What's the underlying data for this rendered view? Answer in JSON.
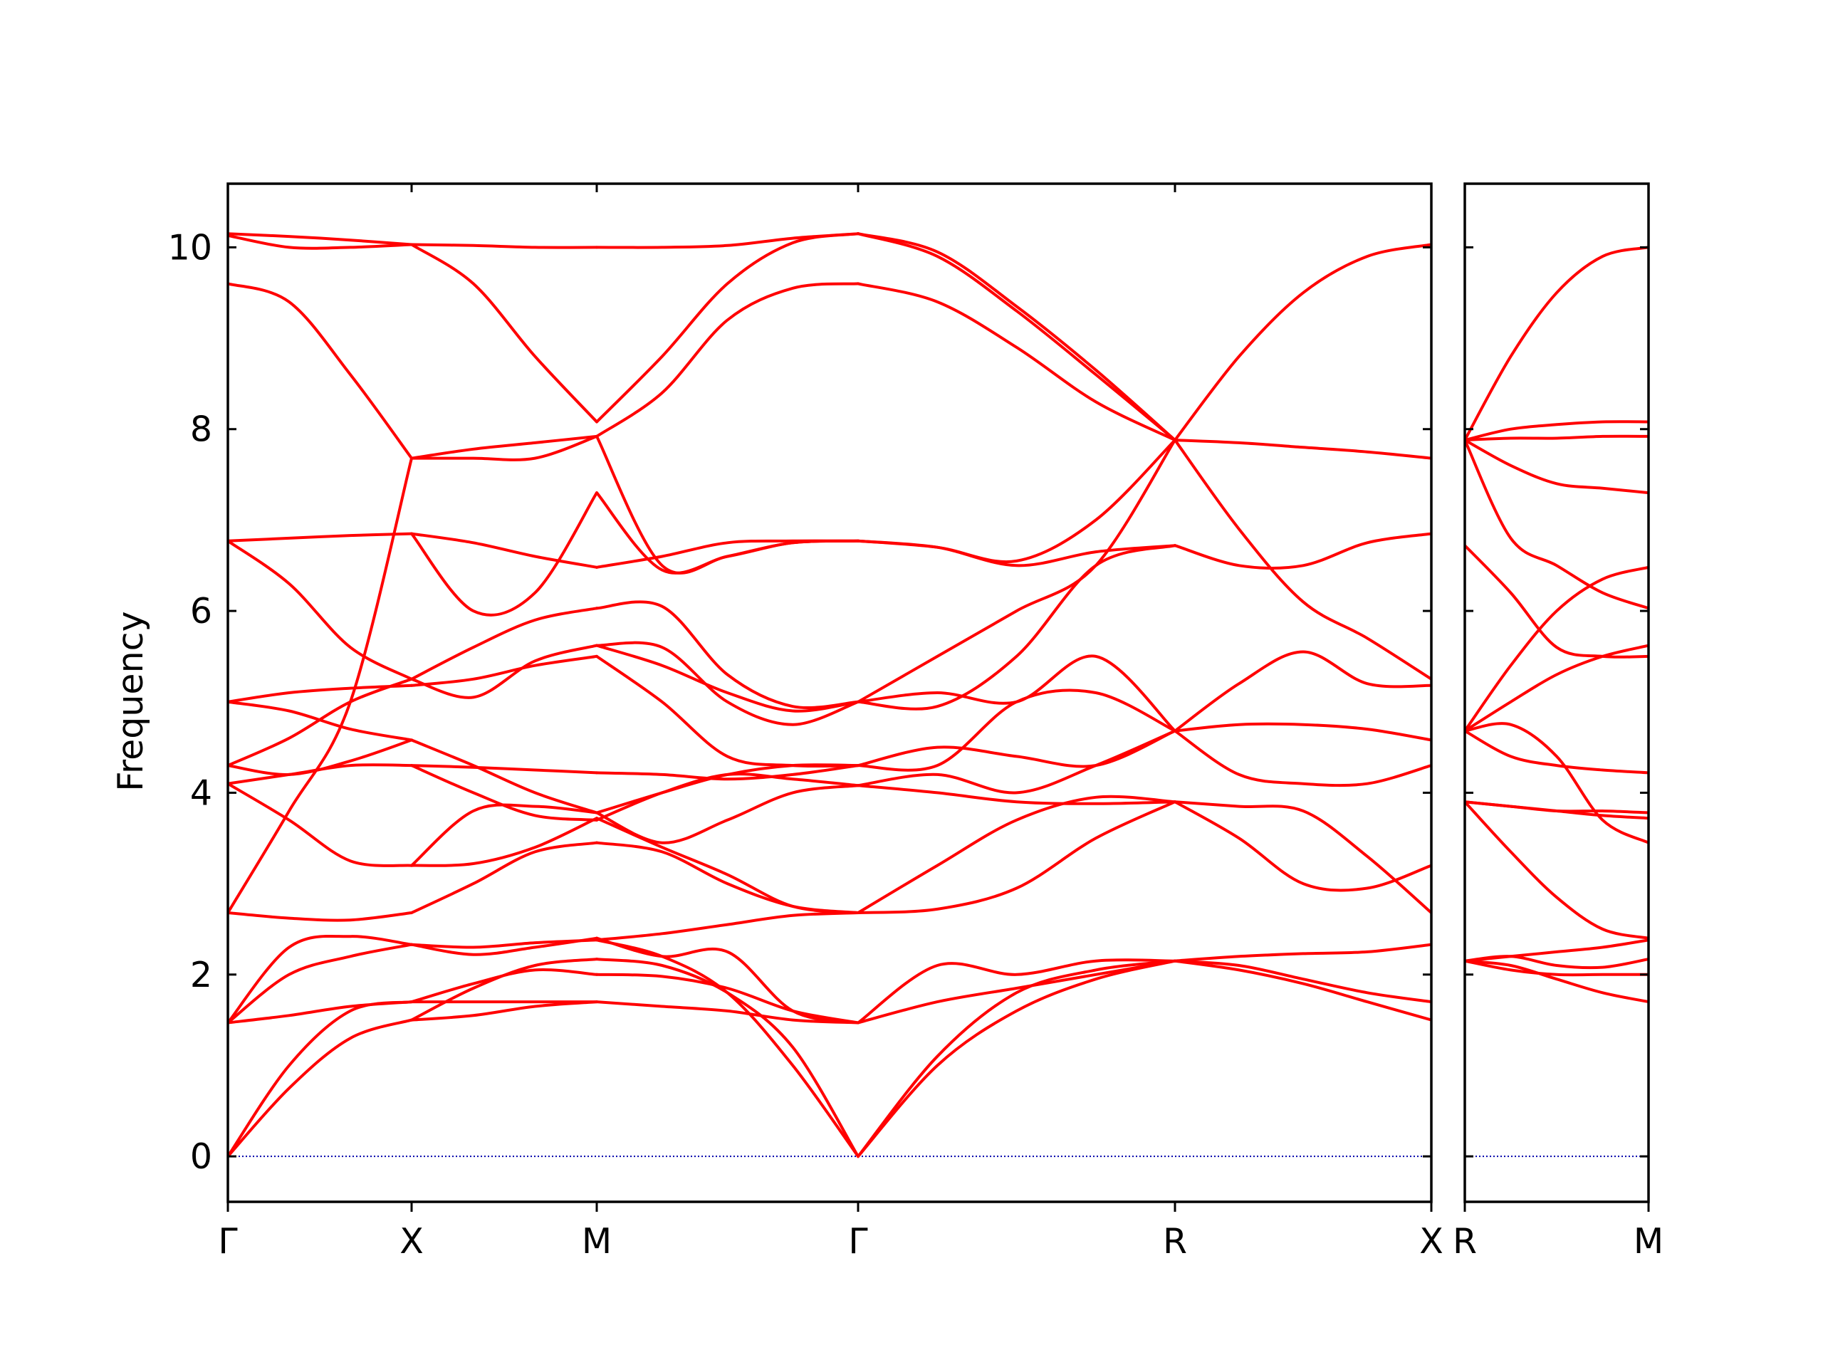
{
  "chart_data": {
    "type": "line",
    "ylabel": "Frequency",
    "ylim": [
      -0.5,
      10.7
    ],
    "yticks": [
      0,
      2,
      4,
      6,
      8,
      10
    ],
    "line_color": "#ff0000",
    "zero_line_color": "#0000aa",
    "panels": [
      {
        "xlabels": [
          "Γ",
          "X",
          "M",
          "Γ",
          "R",
          "X"
        ],
        "segments": [
          {
            "from": "Γ",
            "to": "X",
            "bands": [
              [
                0.0,
                0.75,
                1.3,
                1.5
              ],
              [
                0.0,
                1.0,
                1.6,
                1.7
              ],
              [
                1.47,
                1.55,
                1.65,
                1.7
              ],
              [
                1.47,
                2.3,
                2.42,
                2.33
              ],
              [
                1.47,
                2.0,
                2.2,
                2.33
              ],
              [
                2.68,
                2.62,
                2.6,
                2.68
              ],
              [
                2.68,
                3.8,
                5.0,
                7.68
              ],
              [
                4.1,
                3.7,
                3.25,
                3.2
              ],
              [
                4.1,
                4.2,
                4.3,
                4.3
              ],
              [
                4.3,
                4.2,
                4.35,
                4.58
              ],
              [
                4.3,
                4.6,
                5.0,
                5.25
              ],
              [
                5.0,
                5.1,
                5.15,
                5.18
              ],
              [
                5.0,
                4.9,
                4.7,
                4.58
              ],
              [
                6.77,
                6.3,
                5.6,
                5.25
              ],
              [
                6.77,
                6.8,
                6.83,
                6.85
              ],
              [
                9.6,
                9.4,
                8.6,
                7.68
              ],
              [
                10.13,
                10.0,
                10.0,
                10.03
              ],
              [
                10.15,
                10.12,
                10.08,
                10.03
              ]
            ]
          },
          {
            "from": "X",
            "to": "M",
            "bands": [
              [
                1.5,
                1.55,
                1.65,
                1.7
              ],
              [
                1.7,
                1.7,
                1.7,
                1.7
              ],
              [
                1.7,
                1.9,
                2.05,
                2.0
              ],
              [
                1.5,
                1.85,
                2.1,
                2.17
              ],
              [
                2.33,
                2.3,
                2.35,
                2.38
              ],
              [
                2.33,
                2.22,
                2.3,
                2.4
              ],
              [
                2.68,
                3.0,
                3.35,
                3.45
              ],
              [
                3.2,
                3.8,
                3.85,
                3.78
              ],
              [
                3.2,
                3.22,
                3.4,
                3.72
              ],
              [
                4.3,
                4.0,
                3.75,
                3.7
              ],
              [
                4.3,
                4.28,
                4.25,
                4.22
              ],
              [
                4.58,
                4.3,
                4.0,
                3.78
              ],
              [
                5.18,
                5.25,
                5.4,
                5.5
              ],
              [
                5.25,
                5.05,
                5.45,
                5.62
              ],
              [
                5.25,
                5.6,
                5.9,
                6.03
              ],
              [
                6.85,
                6.0,
                6.2,
                7.3
              ],
              [
                6.85,
                6.75,
                6.6,
                6.48
              ],
              [
                7.68,
                7.68,
                7.68,
                7.92
              ],
              [
                7.68,
                7.78,
                7.85,
                7.92
              ],
              [
                10.03,
                9.6,
                8.8,
                8.08
              ],
              [
                10.03,
                10.02,
                10.0,
                10.0
              ]
            ]
          },
          {
            "from": "M",
            "to": "Γ",
            "bands": [
              [
                1.7,
                1.65,
                1.6,
                1.5,
                1.47
              ],
              [
                2.0,
                1.98,
                1.85,
                1.6,
                1.47
              ],
              [
                2.17,
                2.1,
                1.8,
                1.2,
                0.0
              ],
              [
                2.38,
                2.2,
                1.8,
                1.0,
                0.0
              ],
              [
                2.4,
                2.2,
                2.25,
                1.6,
                1.47
              ],
              [
                2.38,
                2.45,
                2.55,
                2.65,
                2.68
              ],
              [
                3.45,
                3.35,
                3.0,
                2.75,
                2.68
              ],
              [
                3.72,
                3.4,
                3.1,
                2.75,
                2.68
              ],
              [
                3.78,
                3.45,
                3.7,
                4.0,
                4.08
              ],
              [
                3.7,
                4.0,
                4.2,
                4.15,
                4.08
              ],
              [
                3.78,
                4.0,
                4.2,
                4.3,
                4.3
              ],
              [
                4.22,
                4.2,
                4.15,
                4.2,
                4.3
              ],
              [
                5.5,
                5.0,
                4.4,
                4.3,
                4.3
              ],
              [
                5.62,
                5.4,
                5.1,
                4.9,
                5.0
              ],
              [
                5.62,
                5.6,
                5.0,
                4.75,
                5.0
              ],
              [
                6.03,
                6.05,
                5.3,
                4.95,
                5.0
              ],
              [
                7.3,
                6.45,
                6.6,
                6.75,
                6.77
              ],
              [
                6.48,
                6.6,
                6.75,
                6.77,
                6.77
              ],
              [
                7.92,
                6.5,
                6.6,
                6.75,
                6.77
              ],
              [
                7.92,
                8.4,
                9.2,
                9.55,
                9.6
              ],
              [
                8.08,
                8.8,
                9.6,
                10.05,
                10.15
              ],
              [
                10.0,
                10.0,
                10.02,
                10.1,
                10.15
              ]
            ]
          },
          {
            "from": "Γ",
            "to": "R",
            "bands": [
              [
                0.0,
                1.0,
                1.6,
                1.95,
                2.15
              ],
              [
                0.0,
                1.1,
                1.8,
                2.05,
                2.15
              ],
              [
                1.47,
                1.7,
                1.85,
                2.0,
                2.15
              ],
              [
                1.47,
                2.1,
                2.0,
                2.15,
                2.15
              ],
              [
                2.68,
                2.72,
                2.95,
                3.5,
                3.9
              ],
              [
                2.68,
                3.2,
                3.7,
                3.95,
                3.9
              ],
              [
                4.08,
                4.0,
                3.9,
                3.88,
                3.9
              ],
              [
                4.08,
                4.2,
                4.0,
                4.3,
                4.68
              ],
              [
                4.3,
                4.3,
                5.0,
                5.1,
                4.68
              ],
              [
                4.3,
                4.5,
                4.4,
                4.3,
                4.68
              ],
              [
                5.0,
                5.1,
                5.0,
                5.5,
                4.68
              ],
              [
                5.0,
                5.5,
                6.0,
                6.5,
                7.88
              ],
              [
                5.0,
                4.95,
                5.5,
                6.5,
                6.72
              ],
              [
                6.77,
                6.7,
                6.5,
                6.65,
                6.72
              ],
              [
                6.77,
                6.7,
                6.55,
                7.0,
                7.88
              ],
              [
                9.6,
                9.4,
                8.9,
                8.3,
                7.88
              ],
              [
                10.15,
                9.9,
                9.3,
                8.6,
                7.88
              ],
              [
                10.15,
                9.95,
                9.35,
                8.65,
                7.88
              ]
            ]
          },
          {
            "from": "R",
            "to": "X",
            "bands": [
              [
                2.15,
                2.05,
                1.9,
                1.7,
                1.5
              ],
              [
                2.15,
                2.1,
                1.95,
                1.8,
                1.7
              ],
              [
                2.15,
                2.2,
                2.23,
                2.25,
                2.33
              ],
              [
                3.9,
                3.85,
                3.8,
                3.3,
                2.68
              ],
              [
                3.9,
                3.5,
                3.0,
                2.95,
                3.2
              ],
              [
                4.68,
                4.2,
                4.1,
                4.1,
                4.3
              ],
              [
                4.68,
                5.2,
                5.55,
                5.2,
                5.18
              ],
              [
                4.68,
                4.75,
                4.75,
                4.7,
                4.58
              ],
              [
                6.72,
                6.5,
                6.5,
                6.75,
                6.85
              ],
              [
                7.88,
                6.9,
                6.1,
                5.7,
                5.25
              ],
              [
                7.88,
                7.85,
                7.8,
                7.75,
                7.68
              ],
              [
                7.88,
                8.8,
                9.5,
                9.9,
                10.03
              ]
            ]
          }
        ]
      },
      {
        "xlabels": [
          "R",
          "M"
        ],
        "segments": [
          {
            "from": "R",
            "to": "M",
            "bands": [
              [
                2.15,
                2.1,
                1.95,
                1.8,
                1.7
              ],
              [
                2.15,
                2.05,
                2.0,
                2.0,
                2.0
              ],
              [
                2.15,
                2.2,
                2.25,
                2.3,
                2.38
              ],
              [
                2.15,
                2.2,
                2.1,
                2.08,
                2.17
              ],
              [
                3.9,
                3.35,
                2.85,
                2.5,
                2.4
              ],
              [
                3.9,
                3.85,
                3.8,
                3.75,
                3.72
              ],
              [
                3.9,
                3.85,
                3.8,
                3.8,
                3.78
              ],
              [
                4.68,
                4.75,
                4.4,
                3.7,
                3.45
              ],
              [
                4.68,
                4.4,
                4.3,
                4.25,
                4.22
              ],
              [
                4.68,
                5.0,
                5.3,
                5.5,
                5.62
              ],
              [
                4.68,
                5.4,
                6.0,
                6.35,
                6.48
              ],
              [
                6.72,
                6.2,
                5.6,
                5.5,
                5.5
              ],
              [
                7.88,
                6.8,
                6.5,
                6.2,
                6.03
              ],
              [
                7.88,
                7.6,
                7.4,
                7.35,
                7.3
              ],
              [
                7.88,
                7.9,
                7.9,
                7.92,
                7.92
              ],
              [
                7.88,
                8.0,
                8.05,
                8.08,
                8.08
              ],
              [
                7.88,
                8.8,
                9.5,
                9.9,
                10.0
              ]
            ]
          }
        ]
      }
    ]
  }
}
